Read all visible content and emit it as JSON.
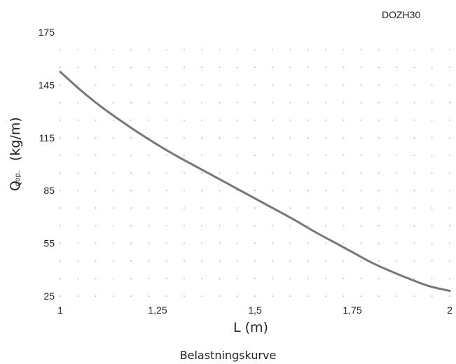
{
  "chart_data": {
    "type": "line",
    "series_tag": "DOZH30",
    "caption": "Belastningskurve",
    "xlabel": "L (m)",
    "ylabel_main": "Q",
    "ylabel_sub": "dop.",
    "ylabel_unit": "(kg/m)",
    "xlim": [
      1,
      2
    ],
    "ylim": [
      25,
      175
    ],
    "x_ticks": [
      {
        "value": 1,
        "label": "1"
      },
      {
        "value": 1.25,
        "label": "1,25"
      },
      {
        "value": 1.5,
        "label": "1,5"
      },
      {
        "value": 1.75,
        "label": "1,75"
      },
      {
        "value": 2,
        "label": "2"
      }
    ],
    "y_ticks": [
      {
        "value": 25,
        "label": "25"
      },
      {
        "value": 55,
        "label": "55"
      },
      {
        "value": 85,
        "label": "85"
      },
      {
        "value": 115,
        "label": "115"
      },
      {
        "value": 145,
        "label": "145"
      },
      {
        "value": 175,
        "label": "175"
      }
    ],
    "grid": "dotted",
    "line_color": "#777777",
    "series": [
      {
        "x": [
          1.0,
          1.05,
          1.1,
          1.15,
          1.2,
          1.25,
          1.3,
          1.35,
          1.4,
          1.45,
          1.5,
          1.55,
          1.6,
          1.65,
          1.7,
          1.75,
          1.8,
          1.85,
          1.9,
          1.95,
          2.0
        ],
        "y": [
          152.5,
          142.5,
          133.5,
          125.5,
          118.0,
          111.0,
          104.5,
          98.5,
          92.5,
          86.5,
          80.5,
          74.5,
          68.5,
          62.0,
          56.0,
          50.0,
          44.0,
          39.0,
          34.5,
          30.5,
          28.0
        ]
      }
    ]
  }
}
